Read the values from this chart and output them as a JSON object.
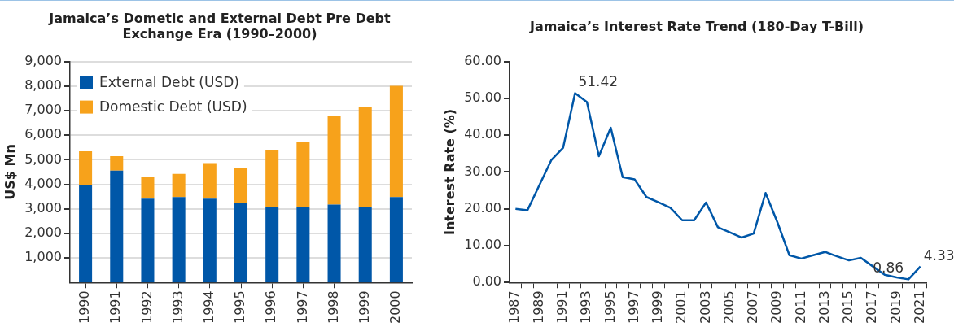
{
  "chart_data": [
    {
      "type": "bar",
      "title": "Jamaica’s Dometic and External Debt Pre Debt Exchange Era (1990–2000)",
      "ylabel": "US$ Mn",
      "stacked": true,
      "categories": [
        "1990",
        "1991",
        "1992",
        "1993",
        "1994",
        "1995",
        "1996",
        "1997",
        "1998",
        "1999",
        "2000"
      ],
      "series": [
        {
          "name": "External Debt (USD)",
          "color": "#0057a8",
          "values": [
            3950,
            4560,
            3410,
            3480,
            3410,
            3240,
            3070,
            3070,
            3170,
            3070,
            3480
          ]
        },
        {
          "name": "Domestic Debt (USD)",
          "color": "#f7a21b",
          "values": [
            1390,
            580,
            880,
            940,
            1450,
            1420,
            2340,
            2670,
            3620,
            4060,
            4530
          ]
        }
      ],
      "ylim": [
        0,
        9000
      ],
      "yticks": [
        {
          "value": 1000,
          "label": "1,000"
        },
        {
          "value": 2000,
          "label": "2,000"
        },
        {
          "value": 3000,
          "label": "3,000"
        },
        {
          "value": 4000,
          "label": "4,000"
        },
        {
          "value": 5000,
          "label": "5,000"
        },
        {
          "value": 6000,
          "label": "6,000"
        },
        {
          "value": 7000,
          "label": "7,000"
        },
        {
          "value": 8000,
          "label": "8,000"
        },
        {
          "value": 9000,
          "label": "9,000"
        }
      ],
      "grid": "y",
      "legend": "top left"
    },
    {
      "type": "line",
      "title": "Jamaica’s Interest Rate Trend (180-Day T-Bill)",
      "ylabel": "Interest Rate (%)",
      "categories": [
        "1987",
        null,
        "1989",
        null,
        "1991",
        null,
        "1993",
        null,
        "1995",
        null,
        "1997",
        null,
        "1999",
        null,
        "2001",
        null,
        "2003",
        null,
        "2005",
        null,
        "2007",
        null,
        "2009",
        null,
        "2011",
        null,
        "2013",
        null,
        "2015",
        null,
        "2017",
        null,
        "2019",
        null,
        "2021"
      ],
      "series": [
        {
          "color": "#0057a8",
          "values": [
            20.0,
            19.6,
            26.4,
            33.2,
            36.6,
            51.42,
            49.0,
            34.3,
            42.0,
            28.6,
            28.0,
            23.2,
            21.8,
            20.3,
            16.9,
            16.9,
            21.7,
            15.0,
            13.6,
            12.2,
            13.3,
            24.3,
            16.3,
            7.4,
            6.5,
            7.4,
            8.3,
            7.1,
            6.0,
            6.7,
            4.4,
            2.1,
            1.4,
            0.86,
            4.33
          ],
          "value_labels": [
            null,
            null,
            null,
            null,
            null,
            "51.42",
            null,
            null,
            null,
            null,
            null,
            null,
            null,
            null,
            null,
            null,
            null,
            null,
            null,
            null,
            null,
            null,
            null,
            null,
            null,
            null,
            null,
            null,
            null,
            null,
            null,
            null,
            null,
            "0.86",
            "4.33"
          ]
        }
      ],
      "ylim": [
        0,
        60
      ],
      "yticks": [
        {
          "value": 0,
          "label": "0.00"
        },
        {
          "value": 10,
          "label": "10.00"
        },
        {
          "value": 20,
          "label": "20.00"
        },
        {
          "value": 30,
          "label": "30.00"
        },
        {
          "value": 40,
          "label": "40.00"
        },
        {
          "value": 50,
          "label": "50.00"
        },
        {
          "value": 60,
          "label": "60.00"
        }
      ],
      "grid": false,
      "legend": false,
      "marker": "none"
    }
  ]
}
